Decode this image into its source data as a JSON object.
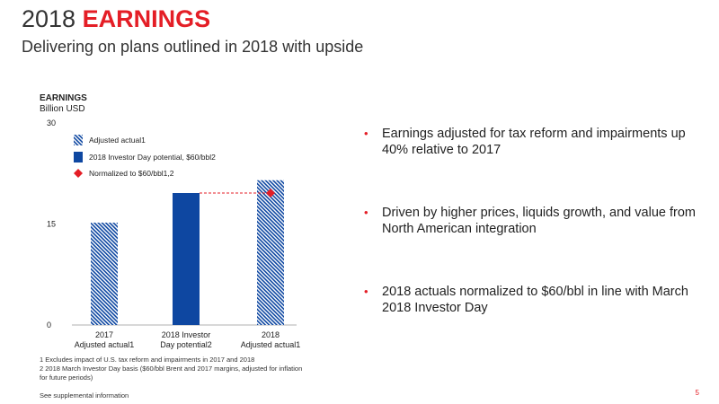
{
  "header": {
    "title_year": "2018",
    "title_highlight": "EARNINGS",
    "subtitle": "Delivering on plans outlined in 2018 with upside"
  },
  "chart_data": {
    "type": "bar",
    "title": "EARNINGS",
    "unit": "Billion USD",
    "categories": [
      "2017 Adjusted actual1",
      "2018 Investor Day potential2",
      "2018 Adjusted actual1"
    ],
    "category_lines": [
      [
        "2017",
        "Adjusted actual1"
      ],
      [
        "2018 Investor",
        "Day potential2"
      ],
      [
        "2018",
        "Adjusted actual1"
      ]
    ],
    "values": [
      15.2,
      19.6,
      21.5
    ],
    "bar_styles": [
      "hatched",
      "solid",
      "hatched"
    ],
    "normalized_marker": {
      "category_index": 2,
      "value": 19.6,
      "label": "Normalized to $60/bbl1,2"
    },
    "ylim": [
      0,
      30
    ],
    "yticks": [
      0,
      15,
      30
    ],
    "legend": [
      {
        "label": "Adjusted actual1",
        "style": "hatched"
      },
      {
        "label": "2018 Investor Day potential, $60/bbl2",
        "style": "solid"
      },
      {
        "label": "Normalized to $60/bbl1,2",
        "style": "diamond"
      }
    ],
    "legend_position": "top-left",
    "colors": {
      "bar": "#0e47a1",
      "hatch_light": "#ffffff",
      "marker": "#e41e26"
    }
  },
  "bullets": [
    "Earnings adjusted for tax reform and impairments up 40% relative to 2017",
    "Driven by higher prices, liquids growth, and value from North American integration",
    "2018 actuals normalized to $60/bbl in line with March 2018 Investor Day"
  ],
  "footnotes": {
    "note1": "1 Excludes impact of U.S. tax reform and impairments in 2017 and 2018",
    "note2": "2 2018 March Investor Day basis ($60/bbl Brent and 2017 margins, adjusted for inflation for future periods)",
    "supplemental": "See supplemental information"
  },
  "page_number": "5"
}
